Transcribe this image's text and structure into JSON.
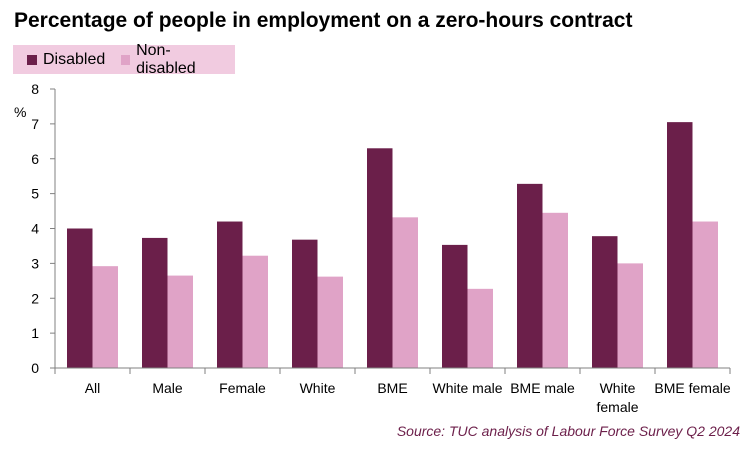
{
  "chart_data": {
    "type": "bar",
    "title": "Percentage of people in employment on a zero-hours contract",
    "ylabel": "%",
    "xlabel": "",
    "ylim": [
      0,
      8
    ],
    "yticks": [
      0,
      1,
      2,
      3,
      4,
      5,
      6,
      7,
      8
    ],
    "grid": false,
    "legend_position": "top-left",
    "categories": [
      [
        "All"
      ],
      [
        "Male"
      ],
      [
        "Female"
      ],
      [
        "White"
      ],
      [
        "BME"
      ],
      [
        "White male"
      ],
      [
        "BME male"
      ],
      [
        "White",
        "female"
      ],
      [
        "BME female"
      ]
    ],
    "series": [
      {
        "name": "Disabled",
        "color": "#6b1f4a",
        "values": [
          4.0,
          3.73,
          4.2,
          3.68,
          6.3,
          3.53,
          5.28,
          3.78,
          7.05
        ]
      },
      {
        "name": "Non-disabled",
        "color": "#e0a3c7",
        "values": [
          2.92,
          2.65,
          3.22,
          2.62,
          4.32,
          2.27,
          4.45,
          3.0,
          4.2
        ]
      }
    ],
    "source": "Source: TUC analysis of Labour Force Survey Q2 2024"
  }
}
